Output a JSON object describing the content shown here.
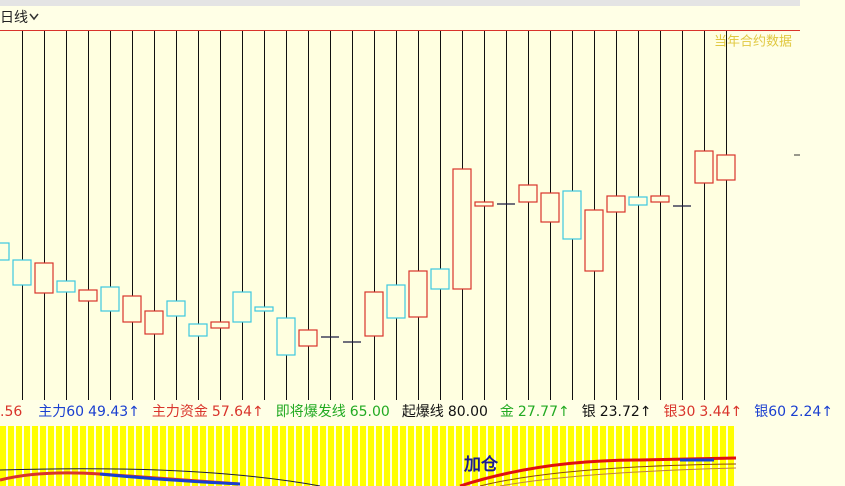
{
  "toolbar": {
    "period": "日线"
  },
  "chart_data": {
    "type": "candlestick",
    "annotation": "当年合约数据",
    "categories": [
      null,
      null,
      null,
      null,
      null,
      null,
      null,
      null,
      null,
      null,
      null,
      null,
      null,
      null,
      null,
      null,
      null,
      null,
      null,
      null,
      null,
      null,
      null,
      null,
      null,
      null,
      null,
      null,
      null,
      null,
      null,
      null,
      null,
      null
    ],
    "open": [
      157,
      140,
      107,
      119,
      99,
      113,
      78,
      66,
      99,
      76,
      72,
      108,
      93,
      82,
      54,
      63,
      58,
      64,
      115,
      83,
      131,
      111,
      194,
      196,
      198,
      178,
      209,
      129,
      188,
      203,
      198,
      194,
      217,
      220
    ],
    "close": [
      140,
      115,
      137,
      108,
      110,
      89,
      104,
      89,
      84,
      64,
      78,
      78,
      89,
      45,
      70,
      63,
      58,
      108,
      82,
      129,
      111,
      231,
      198,
      196,
      215,
      207,
      161,
      190,
      204,
      195,
      204,
      194,
      249,
      245
    ],
    "up_color": "#d9342b",
    "down_color": "#3cc8e0",
    "flat_color": "#1a1a40",
    "ylim": [
      0,
      370
    ]
  },
  "indicators": [
    {
      "label": ".56",
      "value": "",
      "color": "#d9342b"
    },
    {
      "label": "主力60",
      "value": "49.43↑",
      "color": "#1a3fd0"
    },
    {
      "label": "主力资金",
      "value": "57.64↑",
      "color": "#d9342b"
    },
    {
      "label": "即将爆发线",
      "value": "65.00",
      "color": "#22aa22"
    },
    {
      "label": "起爆线",
      "value": "80.00",
      "color": "#111111"
    },
    {
      "label": "金",
      "value": "27.77↑",
      "color": "#22aa22"
    },
    {
      "label": "银",
      "value": "23.72↑",
      "color": "#111111"
    },
    {
      "label": "银30",
      "value": "3.44↑",
      "color": "#d9342b"
    },
    {
      "label": "银60",
      "value": "2.24↑",
      "color": "#1a3fd0"
    }
  ],
  "bottom_panel": {
    "signal": "加仓"
  }
}
